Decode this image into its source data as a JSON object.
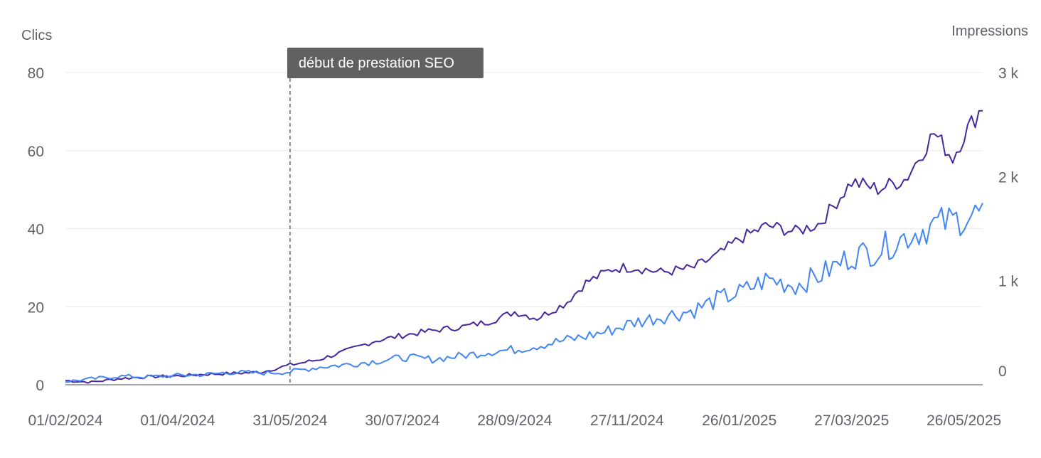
{
  "chart_data": {
    "type": "line",
    "y_left_label": "Clics",
    "y_right_label": "Impressions",
    "y_left_ticks": [
      "0",
      "20",
      "40",
      "60",
      "80"
    ],
    "y_right_ticks": [
      "0",
      "1 k",
      "2 k",
      "3 k"
    ],
    "ylim_left": [
      0,
      80
    ],
    "ylim_right": [
      0,
      3000
    ],
    "x_ticks": [
      "01/02/2024",
      "01/04/2024",
      "31/05/2024",
      "30/07/2024",
      "28/09/2024",
      "27/11/2024",
      "26/01/2025",
      "27/03/2025",
      "26/05/2025"
    ],
    "x_range": [
      "2024-02-01",
      "2025-06-05"
    ],
    "grid": true,
    "annotation": {
      "date": "2024-05-31",
      "label": "début de prestation SEO"
    },
    "series": [
      {
        "axis": "right",
        "color": "#4527a0",
        "points": [
          [
            "2024-02-01",
            40
          ],
          [
            "2024-02-15",
            25
          ],
          [
            "2024-03-01",
            60
          ],
          [
            "2024-03-15",
            75
          ],
          [
            "2024-04-01",
            85
          ],
          [
            "2024-04-15",
            100
          ],
          [
            "2024-05-01",
            110
          ],
          [
            "2024-05-15",
            120
          ],
          [
            "2024-05-31",
            190
          ],
          [
            "2024-06-15",
            240
          ],
          [
            "2024-07-01",
            330
          ],
          [
            "2024-07-15",
            420
          ],
          [
            "2024-08-01",
            480
          ],
          [
            "2024-08-15",
            520
          ],
          [
            "2024-09-01",
            560
          ],
          [
            "2024-09-15",
            610
          ],
          [
            "2024-09-28",
            700
          ],
          [
            "2024-10-10",
            640
          ],
          [
            "2024-10-25",
            780
          ],
          [
            "2024-11-05",
            980
          ],
          [
            "2024-11-20",
            1120
          ],
          [
            "2024-12-01",
            1130
          ],
          [
            "2024-12-15",
            1080
          ],
          [
            "2025-01-01",
            1120
          ],
          [
            "2025-01-15",
            1250
          ],
          [
            "2025-01-26",
            1400
          ],
          [
            "2025-02-10",
            1530
          ],
          [
            "2025-02-25",
            1470
          ],
          [
            "2025-03-10",
            1550
          ],
          [
            "2025-03-27",
            1950
          ],
          [
            "2025-04-10",
            1880
          ],
          [
            "2025-04-25",
            1980
          ],
          [
            "2025-05-10",
            2420
          ],
          [
            "2025-05-20",
            2180
          ],
          [
            "2025-05-26",
            2400
          ],
          [
            "2025-06-05",
            2680
          ]
        ]
      },
      {
        "axis": "left",
        "color": "#4285f4",
        "points": [
          [
            "2024-02-01",
            0.8
          ],
          [
            "2024-02-15",
            1.5
          ],
          [
            "2024-03-01",
            2.2
          ],
          [
            "2024-03-15",
            2.0
          ],
          [
            "2024-04-01",
            2.4
          ],
          [
            "2024-04-15",
            2.6
          ],
          [
            "2024-05-01",
            3.2
          ],
          [
            "2024-05-15",
            3.0
          ],
          [
            "2024-05-31",
            3.3
          ],
          [
            "2024-06-15",
            4.5
          ],
          [
            "2024-07-01",
            5.2
          ],
          [
            "2024-07-15",
            6.0
          ],
          [
            "2024-08-01",
            7.0
          ],
          [
            "2024-08-15",
            6.5
          ],
          [
            "2024-09-01",
            7.5
          ],
          [
            "2024-09-15",
            8.5
          ],
          [
            "2024-09-28",
            9.0
          ],
          [
            "2024-10-15",
            10.5
          ],
          [
            "2024-11-01",
            12.0
          ],
          [
            "2024-11-15",
            13.5
          ],
          [
            "2024-12-01",
            16.0
          ],
          [
            "2024-12-15",
            17.5
          ],
          [
            "2025-01-01",
            19.0
          ],
          [
            "2025-01-15",
            22.0
          ],
          [
            "2025-01-26",
            23.5
          ],
          [
            "2025-02-10",
            27.0
          ],
          [
            "2025-02-25",
            25.5
          ],
          [
            "2025-03-10",
            28.0
          ],
          [
            "2025-03-27",
            33.0
          ],
          [
            "2025-04-10",
            34.5
          ],
          [
            "2025-04-25",
            38.0
          ],
          [
            "2025-05-10",
            41.0
          ],
          [
            "2025-05-20",
            42.0
          ],
          [
            "2025-05-26",
            43.0
          ],
          [
            "2025-06-05",
            44.0
          ]
        ]
      }
    ]
  }
}
